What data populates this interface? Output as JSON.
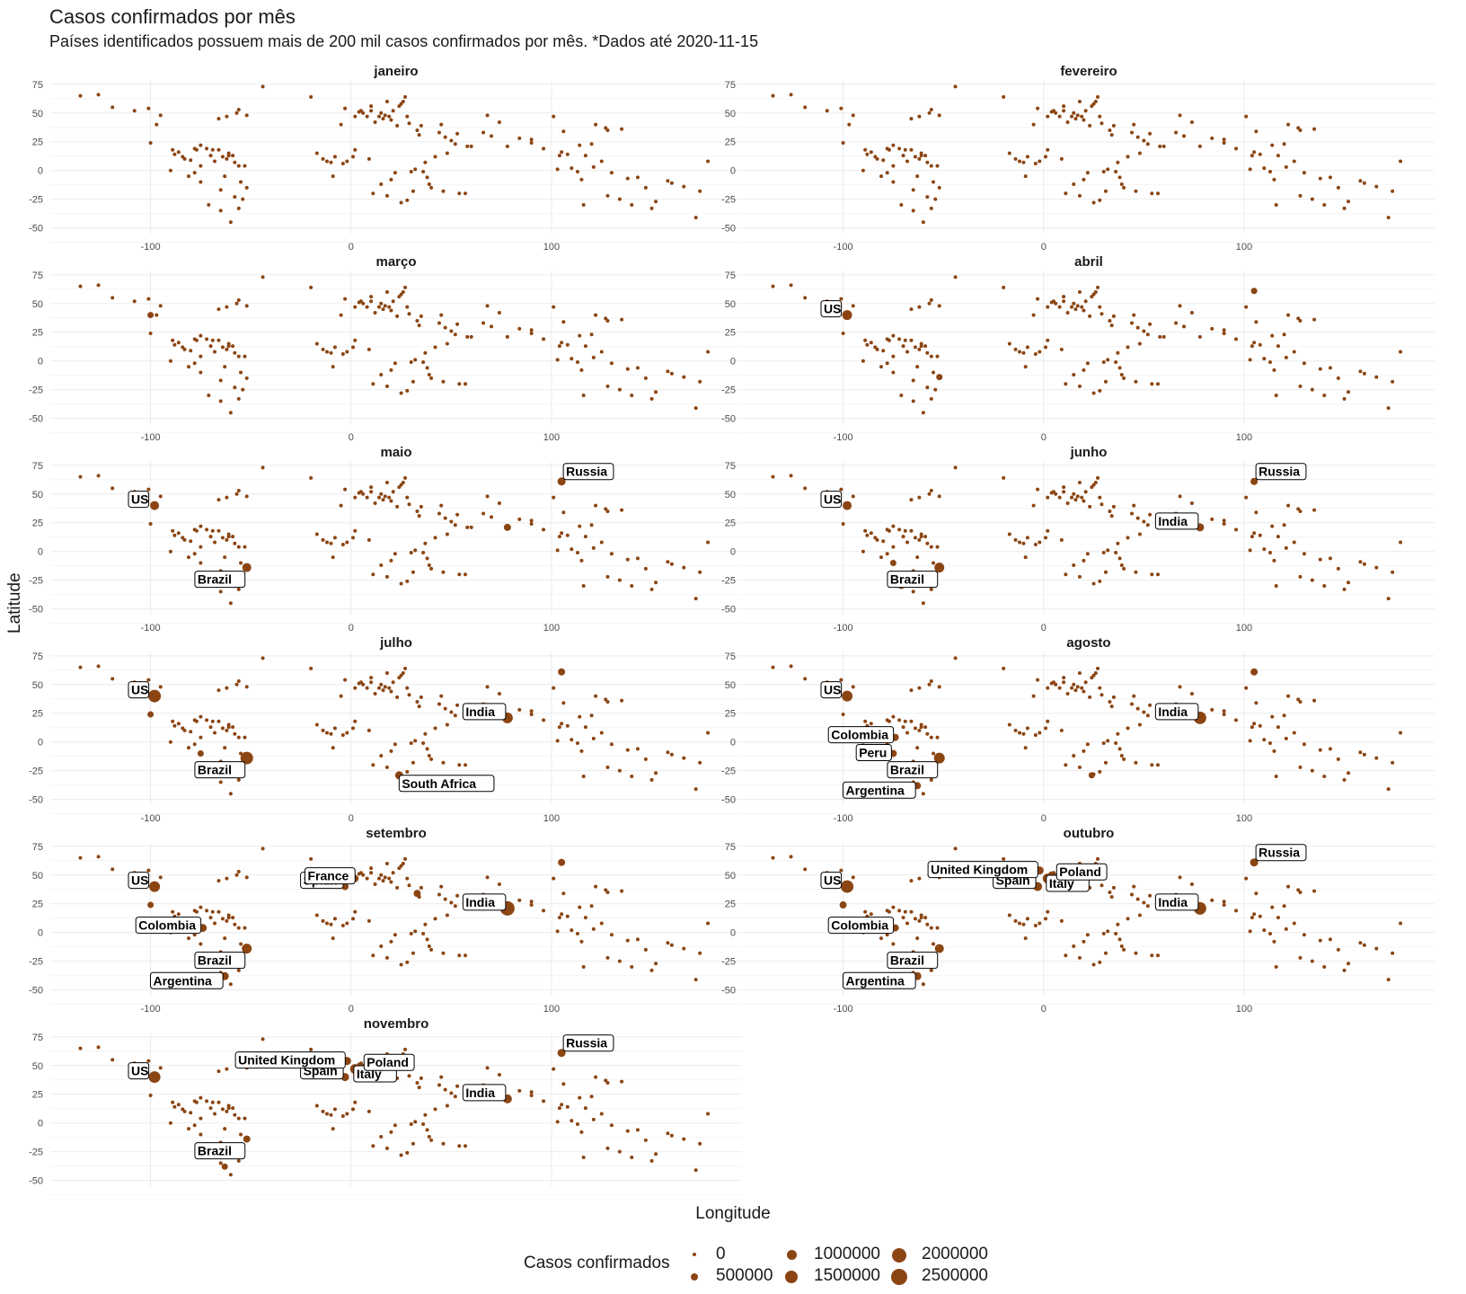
{
  "title": "Casos confirmados por mês",
  "subtitle": "Países identificados possuem mais de 200 mil casos confirmados por mês. *Dados até 2020-11-15",
  "colors": {
    "point": "#8B4513",
    "grid": "#ebebeb",
    "label_border": "#000000"
  },
  "chart_data": {
    "type": "scatter",
    "xlabel": "Longitude",
    "ylabel": "Latitude",
    "xlim": [
      -150,
      195
    ],
    "ylim": [
      -55,
      78
    ],
    "x_ticks": [
      -100,
      0,
      100
    ],
    "y_ticks": [
      75,
      50,
      25,
      0,
      -25,
      -50
    ],
    "grid": true,
    "size_legend": {
      "title": "Casos confirmados",
      "placement": "bottom",
      "breaks": [
        "0",
        "500000",
        "1000000",
        "1500000",
        "2000000",
        "2500000"
      ]
    },
    "base_points": [
      [
        -135,
        65
      ],
      [
        -126,
        66
      ],
      [
        -119,
        55
      ],
      [
        -108,
        52
      ],
      [
        -101,
        54
      ],
      [
        -95,
        48
      ],
      [
        -100,
        24
      ],
      [
        -97,
        40
      ],
      [
        -89,
        18
      ],
      [
        -86,
        16
      ],
      [
        -88,
        14
      ],
      [
        -84,
        12
      ],
      [
        -83,
        10
      ],
      [
        -80,
        9
      ],
      [
        -78,
        19
      ],
      [
        -77,
        18
      ],
      [
        -75,
        22
      ],
      [
        -72,
        19
      ],
      [
        -70,
        13
      ],
      [
        -69,
        18
      ],
      [
        -66,
        18
      ],
      [
        -64,
        12
      ],
      [
        -62,
        10
      ],
      [
        -61,
        15
      ],
      [
        -61,
        13
      ],
      [
        -59,
        13
      ],
      [
        -58,
        7
      ],
      [
        -56,
        4
      ],
      [
        -53,
        4
      ],
      [
        -75,
        4
      ],
      [
        -78,
        -2
      ],
      [
        -75,
        -10
      ],
      [
        -65,
        -17
      ],
      [
        -58,
        -23
      ],
      [
        -56,
        -33
      ],
      [
        -65,
        -35
      ],
      [
        -71,
        -30
      ],
      [
        -60,
        -45
      ],
      [
        -55,
        -10
      ],
      [
        -52,
        -15
      ],
      [
        -66,
        45
      ],
      [
        -62,
        47
      ],
      [
        -57,
        50
      ],
      [
        -56,
        53
      ],
      [
        -52,
        48
      ],
      [
        -44,
        73
      ],
      [
        -20,
        64
      ],
      [
        -17,
        15
      ],
      [
        -14,
        10
      ],
      [
        -12,
        8
      ],
      [
        -10,
        7
      ],
      [
        -8,
        12
      ],
      [
        -5,
        40
      ],
      [
        -3,
        54
      ],
      [
        -2,
        8
      ],
      [
        1,
        12
      ],
      [
        2,
        47
      ],
      [
        2,
        18
      ],
      [
        4,
        51
      ],
      [
        5,
        52
      ],
      [
        6,
        50
      ],
      [
        8,
        47
      ],
      [
        9,
        10
      ],
      [
        10,
        52
      ],
      [
        10,
        56
      ],
      [
        12,
        42
      ],
      [
        14,
        47
      ],
      [
        15,
        50
      ],
      [
        16,
        45
      ],
      [
        17,
        48
      ],
      [
        18,
        60
      ],
      [
        19,
        47
      ],
      [
        20,
        44
      ],
      [
        21,
        52
      ],
      [
        22,
        -2
      ],
      [
        23,
        39
      ],
      [
        24,
        56
      ],
      [
        25,
        58
      ],
      [
        26,
        60
      ],
      [
        27,
        64
      ],
      [
        28,
        47
      ],
      [
        29,
        41
      ],
      [
        30,
        -1
      ],
      [
        32,
        1
      ],
      [
        33,
        35
      ],
      [
        34,
        31
      ],
      [
        35,
        39
      ],
      [
        36,
        -1
      ],
      [
        37,
        7
      ],
      [
        38,
        -6
      ],
      [
        39,
        -12
      ],
      [
        40,
        -15
      ],
      [
        42,
        12
      ],
      [
        44,
        33
      ],
      [
        45,
        40
      ],
      [
        47,
        29
      ],
      [
        48,
        15
      ],
      [
        50,
        26
      ],
      [
        52,
        23
      ],
      [
        53,
        32
      ],
      [
        54,
        -20
      ],
      [
        57,
        -20
      ],
      [
        58,
        21
      ],
      [
        60,
        21
      ],
      [
        66,
        33
      ],
      [
        68,
        48
      ],
      [
        70,
        30
      ],
      [
        74,
        42
      ],
      [
        78,
        21
      ],
      [
        84,
        28
      ],
      [
        90,
        24
      ],
      [
        90,
        27
      ],
      [
        96,
        19
      ],
      [
        101,
        47
      ],
      [
        103,
        1
      ],
      [
        104,
        13
      ],
      [
        105,
        16
      ],
      [
        106,
        34
      ],
      [
        108,
        14
      ],
      [
        110,
        2
      ],
      [
        113,
        -1
      ],
      [
        114,
        22
      ],
      [
        117,
        13
      ],
      [
        120,
        23
      ],
      [
        121,
        3
      ],
      [
        122,
        40
      ],
      [
        125,
        8
      ],
      [
        127,
        37
      ],
      [
        128,
        35
      ],
      [
        130,
        -2
      ],
      [
        135,
        36
      ],
      [
        138,
        -7
      ],
      [
        143,
        -6
      ],
      [
        147,
        -15
      ],
      [
        150,
        -33
      ],
      [
        152,
        -27
      ],
      [
        158,
        -9
      ],
      [
        160,
        -11
      ],
      [
        166,
        -14
      ],
      [
        172,
        -41
      ],
      [
        174,
        -18
      ],
      [
        178,
        8
      ],
      [
        134,
        -25
      ],
      [
        140,
        -30
      ],
      [
        116,
        -30
      ],
      [
        128,
        -22
      ],
      [
        115,
        -8
      ],
      [
        46,
        -18
      ],
      [
        18,
        -22
      ],
      [
        25,
        -28
      ],
      [
        28,
        -26
      ],
      [
        15,
        -12
      ],
      [
        11,
        -20
      ],
      [
        20,
        -8
      ],
      [
        31,
        -18
      ],
      [
        -9,
        -5
      ],
      [
        -4,
        6
      ],
      [
        -63,
        -5
      ],
      [
        -81,
        -5
      ],
      [
        -90,
        0
      ],
      [
        -68,
        8
      ],
      [
        -54,
        -25
      ]
    ],
    "panels": [
      {
        "month": "janeiro",
        "big_points": [],
        "labels": []
      },
      {
        "month": "fevereiro",
        "big_points": [],
        "labels": []
      },
      {
        "month": "março",
        "big_points": [
          [
            -100,
            40,
            5
          ]
        ],
        "labels": []
      },
      {
        "month": "abril",
        "big_points": [
          [
            -98,
            40,
            9
          ],
          [
            105,
            61,
            5
          ],
          [
            -52,
            -14,
            5
          ]
        ],
        "labels": [
          {
            "text": "US",
            "x": -100,
            "y": 40
          }
        ]
      },
      {
        "month": "maio",
        "big_points": [
          [
            -98,
            40,
            8
          ],
          [
            -52,
            -14,
            8
          ],
          [
            105,
            61,
            7
          ],
          [
            78,
            21,
            6
          ]
        ],
        "labels": [
          {
            "text": "US",
            "x": -100,
            "y": 40
          },
          {
            "text": "Brazil",
            "x": -52,
            "y": -14
          },
          {
            "text": "Russia",
            "x": 105,
            "y": 61
          }
        ]
      },
      {
        "month": "junho",
        "big_points": [
          [
            -98,
            40,
            8
          ],
          [
            -52,
            -14,
            9
          ],
          [
            105,
            61,
            6
          ],
          [
            78,
            21,
            7
          ],
          [
            -75,
            -10,
            5
          ],
          [
            -71,
            -30,
            5
          ]
        ],
        "labels": [
          {
            "text": "US",
            "x": -100,
            "y": 40
          },
          {
            "text": "Brazil",
            "x": -52,
            "y": -14
          },
          {
            "text": "Russia",
            "x": 105,
            "y": 61
          },
          {
            "text": "India",
            "x": 78,
            "y": 21
          }
        ]
      },
      {
        "month": "julho",
        "big_points": [
          [
            -98,
            40,
            12
          ],
          [
            -52,
            -14,
            12
          ],
          [
            78,
            21,
            10
          ],
          [
            24,
            -29,
            7
          ],
          [
            105,
            61,
            6
          ],
          [
            -75,
            -10,
            5
          ],
          [
            -100,
            24,
            5
          ]
        ],
        "labels": [
          {
            "text": "US",
            "x": -100,
            "y": 40
          },
          {
            "text": "Brazil",
            "x": -52,
            "y": -14
          },
          {
            "text": "India",
            "x": 78,
            "y": 21
          },
          {
            "text": "South Africa",
            "x": 24,
            "y": -29
          }
        ]
      },
      {
        "month": "agosto",
        "big_points": [
          [
            -98,
            40,
            10
          ],
          [
            78,
            21,
            12
          ],
          [
            -52,
            -14,
            10
          ],
          [
            -75,
            -10,
            6
          ],
          [
            -74,
            4,
            6
          ],
          [
            -63,
            -38,
            6
          ],
          [
            105,
            61,
            6
          ],
          [
            24,
            -29,
            5
          ]
        ],
        "labels": [
          {
            "text": "US",
            "x": -100,
            "y": 40
          },
          {
            "text": "India",
            "x": 78,
            "y": 21
          },
          {
            "text": "Brazil",
            "x": -52,
            "y": -14
          },
          {
            "text": "Colombia",
            "x": -74,
            "y": 4
          },
          {
            "text": "Peru",
            "x": -75,
            "y": -10
          },
          {
            "text": "Argentina",
            "x": -63,
            "y": -38
          }
        ]
      },
      {
        "month": "setembro",
        "big_points": [
          [
            -98,
            40,
            10
          ],
          [
            78,
            21,
            14
          ],
          [
            -52,
            -14,
            9
          ],
          [
            -74,
            4,
            7
          ],
          [
            -63,
            -38,
            7
          ],
          [
            -3,
            40,
            6
          ],
          [
            2,
            47,
            6
          ],
          [
            105,
            61,
            6
          ],
          [
            33,
            34,
            6
          ],
          [
            -100,
            24,
            5
          ]
        ],
        "labels": [
          {
            "text": "US",
            "x": -100,
            "y": 40
          },
          {
            "text": "India",
            "x": 78,
            "y": 21
          },
          {
            "text": "Brazil",
            "x": -52,
            "y": -14
          },
          {
            "text": "Colombia",
            "x": -74,
            "y": 4
          },
          {
            "text": "Argentina",
            "x": -63,
            "y": -38
          },
          {
            "text": "Spain",
            "x": -3,
            "y": 40
          },
          {
            "text": "France",
            "x": 2,
            "y": 47
          }
        ]
      },
      {
        "month": "outubro",
        "big_points": [
          [
            -98,
            40,
            12
          ],
          [
            78,
            21,
            12
          ],
          [
            -52,
            -14,
            8
          ],
          [
            -74,
            4,
            6
          ],
          [
            -63,
            -38,
            7
          ],
          [
            -3,
            40,
            8
          ],
          [
            2,
            47,
            9
          ],
          [
            12,
            42,
            7
          ],
          [
            19,
            52,
            7
          ],
          [
            -2,
            54,
            7
          ],
          [
            105,
            61,
            7
          ],
          [
            4,
            50,
            6
          ],
          [
            -100,
            24,
            6
          ]
        ],
        "labels": [
          {
            "text": "US",
            "x": -100,
            "y": 40
          },
          {
            "text": "India",
            "x": 78,
            "y": 21
          },
          {
            "text": "Brazil",
            "x": -52,
            "y": -14
          },
          {
            "text": "Colombia",
            "x": -74,
            "y": 4
          },
          {
            "text": "Argentina",
            "x": -63,
            "y": -38
          },
          {
            "text": "Spain",
            "x": -3,
            "y": 40
          },
          {
            "text": "Italy",
            "x": 12,
            "y": 42
          },
          {
            "text": "Poland",
            "x": 19,
            "y": 52
          },
          {
            "text": "United Kingdom",
            "x": -2,
            "y": 54
          },
          {
            "text": "Russia",
            "x": 105,
            "y": 61
          }
        ]
      },
      {
        "month": "novembro",
        "big_points": [
          [
            -98,
            40,
            11
          ],
          [
            78,
            21,
            8
          ],
          [
            -52,
            -14,
            6
          ],
          [
            -3,
            40,
            7
          ],
          [
            2,
            47,
            9
          ],
          [
            12,
            42,
            8
          ],
          [
            19,
            52,
            8
          ],
          [
            -2,
            54,
            7
          ],
          [
            105,
            61,
            7
          ],
          [
            21,
            47,
            7
          ],
          [
            -63,
            -38,
            5
          ]
        ],
        "labels": [
          {
            "text": "US",
            "x": -100,
            "y": 40
          },
          {
            "text": "India",
            "x": 78,
            "y": 21
          },
          {
            "text": "Brazil",
            "x": -52,
            "y": -14
          },
          {
            "text": "Russia",
            "x": 105,
            "y": 61
          },
          {
            "text": "Spain",
            "x": -3,
            "y": 40
          },
          {
            "text": "Italy",
            "x": 12,
            "y": 42
          },
          {
            "text": "Poland",
            "x": 19,
            "y": 52
          },
          {
            "text": "United Kingdom",
            "x": -2,
            "y": 54
          }
        ]
      }
    ]
  }
}
